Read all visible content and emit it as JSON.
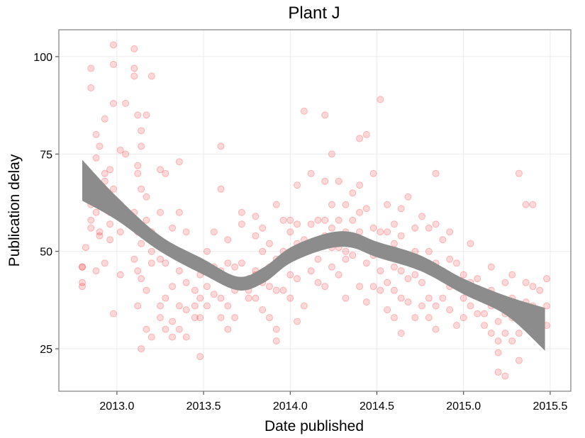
{
  "chart_data": {
    "type": "scatter",
    "title": "Plant J",
    "x_label": "Date published",
    "y_label": "Publication delay",
    "xlim": [
      2012.665,
      2015.619
    ],
    "ylim": [
      14.1,
      106.9
    ],
    "xticks": [
      {
        "value": 2013,
        "label": "2013.0"
      },
      2013.5,
      {
        "value": 2014,
        "label": "2014.0"
      },
      2014.5,
      {
        "value": 2015,
        "label": "2015.0"
      },
      2015.5
    ],
    "yticks": [
      25,
      50,
      75,
      100
    ],
    "grid": true,
    "color": "#ff0000",
    "x": [
      2012.8,
      2012.8,
      2012.8,
      2012.8,
      2012.82,
      2012.82,
      2012.85,
      2012.85,
      2012.85,
      2012.85,
      2012.85,
      2012.88,
      2012.88,
      2012.88,
      2012.88,
      2012.88,
      2012.9,
      2012.9,
      2012.9,
      2012.9,
      2012.93,
      2012.93,
      2012.93,
      2012.93,
      2012.93,
      2012.96,
      2012.96,
      2012.96,
      2012.96,
      2012.98,
      2012.98,
      2012.98,
      2012.98,
      2012.98,
      2013.02,
      2013.02,
      2013.02,
      2013.02,
      2013.02,
      2013.05,
      2013.05,
      2013.05,
      2013.1,
      2013.1,
      2013.1,
      2013.1,
      2013.1,
      2013.1,
      2013.12,
      2013.12,
      2013.12,
      2013.12,
      2013.12,
      2013.12,
      2013.14,
      2013.14,
      2013.14,
      2013.14,
      2013.14,
      2013.14,
      2013.17,
      2013.17,
      2013.17,
      2013.17,
      2013.17,
      2013.2,
      2013.2,
      2013.2,
      2013.2,
      2013.2,
      2013.25,
      2013.25,
      2013.25,
      2013.25,
      2013.25,
      2013.28,
      2013.28,
      2013.28,
      2013.28,
      2013.32,
      2013.32,
      2013.32,
      2013.32,
      2013.32,
      2013.36,
      2013.36,
      2013.36,
      2013.36,
      2013.36,
      2013.4,
      2013.4,
      2013.4,
      2013.4,
      2013.4,
      2013.45,
      2013.45,
      2013.45,
      2013.45,
      2013.48,
      2013.48,
      2013.48,
      2013.48,
      2013.52,
      2013.52,
      2013.52,
      2013.52,
      2013.56,
      2013.56,
      2013.56,
      2013.6,
      2013.6,
      2013.6,
      2013.6,
      2013.6,
      2013.64,
      2013.64,
      2013.64,
      2013.64,
      2013.68,
      2013.68,
      2013.68,
      2013.72,
      2013.72,
      2013.72,
      2013.76,
      2013.76,
      2013.76,
      2013.8,
      2013.8,
      2013.8,
      2013.8,
      2013.8,
      2013.84,
      2013.84,
      2013.84,
      2013.84,
      2013.88,
      2013.88,
      2013.88,
      2013.88,
      2013.92,
      2013.92,
      2013.92,
      2013.92,
      2013.92,
      2013.96,
      2013.96,
      2013.96,
      2013.96,
      2014.0,
      2014.0,
      2014.0,
      2014.0,
      2014.04,
      2014.04,
      2014.04,
      2014.04,
      2014.04,
      2014.08,
      2014.08,
      2014.08,
      2014.08,
      2014.12,
      2014.12,
      2014.12,
      2014.12,
      2014.16,
      2014.16,
      2014.16,
      2014.16,
      2014.2,
      2014.2,
      2014.2,
      2014.2,
      2014.2,
      2014.24,
      2014.24,
      2014.24,
      2014.24,
      2014.24,
      2014.28,
      2014.28,
      2014.28,
      2014.28,
      2014.32,
      2014.32,
      2014.32,
      2014.32,
      2014.32,
      2014.36,
      2014.36,
      2014.36,
      2014.36,
      2014.4,
      2014.4,
      2014.4,
      2014.4,
      2014.4,
      2014.44,
      2014.44,
      2014.44,
      2014.44,
      2014.44,
      2014.48,
      2014.48,
      2014.48,
      2014.48,
      2014.52,
      2014.52,
      2014.52,
      2014.52,
      2014.56,
      2014.56,
      2014.56,
      2014.56,
      2014.56,
      2014.6,
      2014.6,
      2014.6,
      2014.6,
      2014.6,
      2014.64,
      2014.64,
      2014.64,
      2014.64,
      2014.64,
      2014.68,
      2014.68,
      2014.68,
      2014.68,
      2014.72,
      2014.72,
      2014.72,
      2014.72,
      2014.76,
      2014.76,
      2014.76,
      2014.76,
      2014.8,
      2014.8,
      2014.8,
      2014.8,
      2014.8,
      2014.84,
      2014.84,
      2014.84,
      2014.84,
      2014.84,
      2014.88,
      2014.88,
      2014.88,
      2014.92,
      2014.92,
      2014.92,
      2014.92,
      2014.96,
      2014.96,
      2014.96,
      2015.0,
      2015.0,
      2015.0,
      2015.04,
      2015.04,
      2015.04,
      2015.08,
      2015.08,
      2015.08,
      2015.12,
      2015.12,
      2015.12,
      2015.16,
      2015.16,
      2015.16,
      2015.16,
      2015.2,
      2015.2,
      2015.2,
      2015.2,
      2015.2,
      2015.24,
      2015.24,
      2015.24,
      2015.24,
      2015.28,
      2015.28,
      2015.28,
      2015.28,
      2015.32,
      2015.32,
      2015.32,
      2015.32,
      2015.36,
      2015.36,
      2015.36,
      2015.36,
      2015.4,
      2015.4,
      2015.4,
      2015.4,
      2015.44,
      2015.44,
      2015.44,
      2015.48,
      2015.48,
      2015.48
    ],
    "y": [
      46,
      42,
      46,
      41,
      51,
      64,
      56,
      58,
      92,
      97,
      62,
      60,
      66,
      74,
      80,
      45,
      77,
      62,
      55,
      54,
      84,
      70,
      68,
      63,
      47,
      57,
      60,
      71,
      53,
      103,
      98,
      88,
      66,
      34,
      62,
      76,
      61,
      44,
      55,
      75,
      88,
      60,
      95,
      102,
      97,
      57,
      60,
      48,
      85,
      72,
      70,
      55,
      45,
      36,
      81,
      77,
      66,
      52,
      43,
      25,
      85,
      64,
      58,
      30,
      40,
      95,
      55,
      50,
      47,
      28,
      71,
      60,
      48,
      36,
      33,
      70,
      47,
      38,
      30,
      56,
      50,
      41,
      32,
      28,
      73,
      60,
      45,
      36,
      30,
      55,
      48,
      42,
      35,
      28,
      47,
      40,
      33,
      36,
      44,
      38,
      33,
      23,
      50,
      45,
      41,
      36,
      55,
      46,
      39,
      77,
      66,
      45,
      38,
      33,
      53,
      47,
      36,
      30,
      46,
      40,
      33,
      60,
      57,
      47,
      43,
      40,
      38,
      59,
      54,
      45,
      44,
      38,
      56,
      50,
      42,
      35,
      52,
      46,
      41,
      33,
      62,
      48,
      40,
      30,
      27,
      58,
      50,
      47,
      40,
      58,
      55,
      44,
      38,
      67,
      57,
      52,
      43,
      32,
      86,
      53,
      50,
      36,
      70,
      57,
      51,
      45,
      58,
      52,
      48,
      42,
      85,
      68,
      58,
      54,
      41,
      75,
      62,
      56,
      51,
      46,
      68,
      58,
      51,
      44,
      62,
      55,
      50,
      48,
      38,
      65,
      58,
      53,
      49,
      79,
      67,
      60,
      55,
      41,
      80,
      61,
      52,
      47,
      37,
      70,
      56,
      49,
      41,
      89,
      55,
      45,
      40,
      62,
      55,
      50,
      42,
      35,
      57,
      52,
      46,
      40,
      33,
      61,
      54,
      45,
      38,
      29,
      64,
      49,
      43,
      37,
      56,
      50,
      44,
      33,
      59,
      47,
      42,
      36,
      56,
      50,
      45,
      38,
      33,
      70,
      57,
      47,
      36,
      30,
      53,
      45,
      38,
      55,
      48,
      41,
      35,
      47,
      42,
      31,
      44,
      38,
      33,
      52,
      42,
      36,
      43,
      39,
      34,
      38,
      34,
      31,
      46,
      40,
      36,
      29,
      37,
      32,
      27,
      24,
      19,
      42,
      34,
      29,
      18,
      44,
      38,
      33,
      27,
      70,
      35,
      29,
      22,
      62,
      42,
      37,
      31,
      62,
      41,
      36,
      30,
      40,
      34,
      29,
      43,
      36,
      31
    ],
    "smooth": {
      "color": "#8c8c8c",
      "x": [
        2012.8,
        2013.0,
        2013.25,
        2013.5,
        2013.7,
        2013.85,
        2014.0,
        2014.2,
        2014.35,
        2014.5,
        2014.75,
        2015.0,
        2015.25,
        2015.47
      ],
      "lower": [
        63,
        58,
        50,
        44,
        40,
        42,
        47,
        50.5,
        51,
        48.5,
        45,
        39,
        33.5,
        24.5
      ],
      "upper": [
        73.5,
        64,
        54,
        48,
        43.5,
        46,
        51,
        54.5,
        55,
        52.5,
        49,
        43,
        38.5,
        35.5
      ]
    }
  }
}
